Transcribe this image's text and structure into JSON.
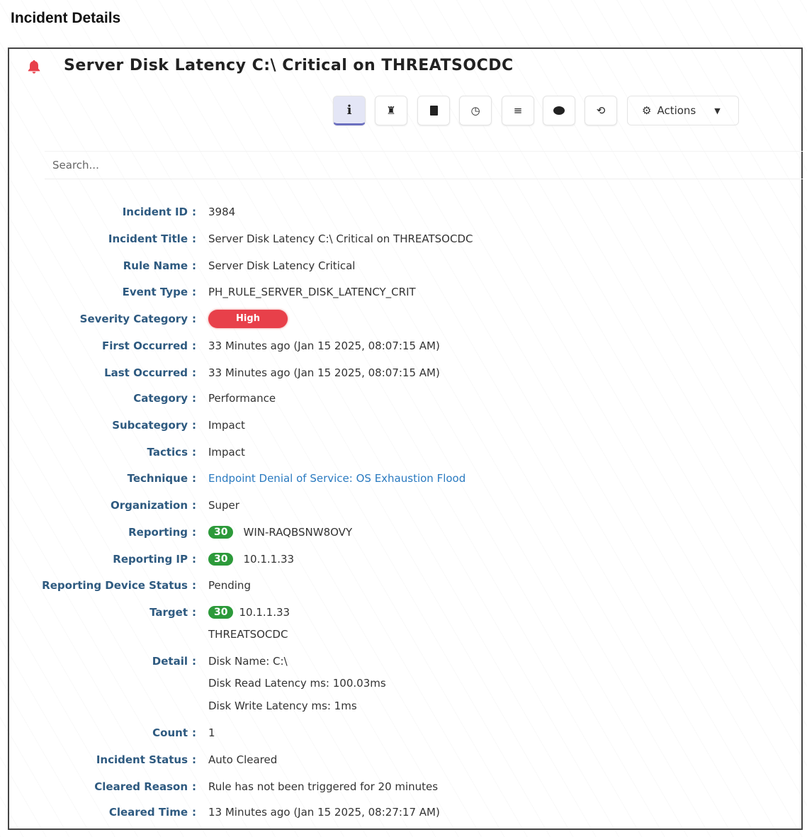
{
  "page_title": "Incident Details",
  "incident_title": "Server Disk Latency C:\\ Critical on THREATSOCDC",
  "toolbar": {
    "actions_label": "Actions",
    "icons": [
      "info-icon",
      "user-secret-icon",
      "file-icon",
      "clock-icon",
      "list-icon",
      "comment-icon",
      "history-icon"
    ]
  },
  "search": {
    "placeholder": "Search..."
  },
  "colors": {
    "severity_high": "#e8404a",
    "count_badge": "#2c9a3a",
    "label": "#2e5a80",
    "link": "#2a7ac0"
  },
  "fields": {
    "incident_id": {
      "label": "Incident ID",
      "value": "3984"
    },
    "incident_title": {
      "label": "Incident Title",
      "value": "Server Disk Latency C:\\ Critical on THREATSOCDC"
    },
    "rule_name": {
      "label": "Rule Name",
      "value": "Server Disk Latency Critical"
    },
    "event_type": {
      "label": "Event Type",
      "value": "PH_RULE_SERVER_DISK_LATENCY_CRIT"
    },
    "severity": {
      "label": "Severity Category",
      "value": "High"
    },
    "first_occurred": {
      "label": "First Occurred",
      "value": "33 Minutes ago (Jan 15 2025, 08:07:15 AM)"
    },
    "last_occurred": {
      "label": "Last Occurred",
      "value": "33 Minutes ago (Jan 15 2025, 08:07:15 AM)"
    },
    "category": {
      "label": "Category",
      "value": "Performance"
    },
    "subcategory": {
      "label": "Subcategory",
      "value": "Impact"
    },
    "tactics": {
      "label": "Tactics",
      "value": "Impact"
    },
    "technique": {
      "label": "Technique",
      "value": "Endpoint Denial of Service: OS Exhaustion Flood"
    },
    "organization": {
      "label": "Organization",
      "value": "Super"
    },
    "reporting": {
      "label": "Reporting",
      "count": "30",
      "value": "WIN-RAQBSNW8OVY"
    },
    "reporting_ip": {
      "label": "Reporting IP",
      "count": "30",
      "value": "10.1.1.33"
    },
    "reporting_device_status": {
      "label": "Reporting Device Status",
      "value": "Pending"
    },
    "target": {
      "label": "Target",
      "count": "30",
      "value": "10.1.1.33",
      "value2": "THREATSOCDC"
    },
    "detail": {
      "label": "Detail",
      "lines": [
        "Disk Name: C:\\",
        "Disk Read Latency ms: 100.03ms",
        "Disk Write Latency ms: 1ms"
      ]
    },
    "count": {
      "label": "Count",
      "value": "1"
    },
    "incident_status": {
      "label": "Incident Status",
      "value": "Auto Cleared"
    },
    "cleared_reason": {
      "label": "Cleared Reason",
      "value": "Rule has not been triggered for 20 minutes"
    },
    "cleared_time": {
      "label": "Cleared Time",
      "value": "13 Minutes ago (Jan 15 2025, 08:27:17 AM)"
    }
  },
  "colon": ":"
}
